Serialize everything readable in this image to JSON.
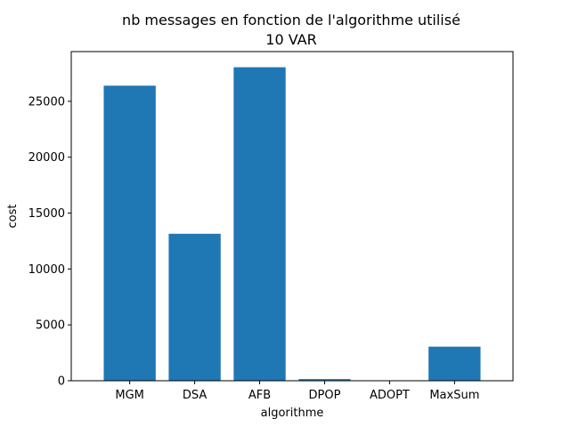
{
  "chart_data": {
    "type": "bar",
    "title": "nb messages en fonction de l'algorithme utilisé",
    "subtitle": "10 VAR",
    "xlabel": "algorithme",
    "ylabel": "cost",
    "categories": [
      "MGM",
      "DSA",
      "AFB",
      "DPOP",
      "ADOPT",
      "MaxSum"
    ],
    "values": [
      26400,
      13150,
      28050,
      150,
      0,
      3050
    ],
    "ylim": [
      0,
      29450
    ],
    "yticks": [
      0,
      5000,
      10000,
      15000,
      20000,
      25000
    ],
    "bar_color": "#1f77b4",
    "grid": false,
    "legend": "none"
  }
}
